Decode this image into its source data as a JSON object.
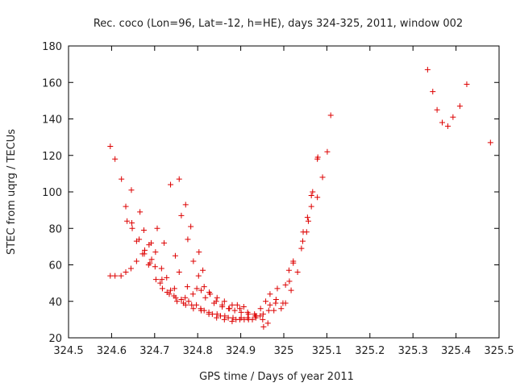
{
  "chart_data": {
    "type": "scatter",
    "title": "Rec. coco (Lon=96, Lat=-12, h=HE), days 324-325, 2011, window 002",
    "xlabel": "GPS time / Days of year 2011",
    "ylabel": "STEC from uqrg / TECUs",
    "xlim": [
      324.5,
      325.5
    ],
    "ylim": [
      20,
      180
    ],
    "xticks": [
      "324.5",
      "324.6",
      "324.7",
      "324.8",
      "324.9",
      "325",
      "325.1",
      "325.2",
      "325.3",
      "325.4",
      "325.5"
    ],
    "yticks": [
      "20",
      "40",
      "60",
      "80",
      "100",
      "120",
      "140",
      "160",
      "180"
    ],
    "grid": false,
    "marker": "plus",
    "color": "#dd0000",
    "points": [
      [
        324.597,
        125
      ],
      [
        324.608,
        118
      ],
      [
        324.623,
        107
      ],
      [
        324.633,
        92
      ],
      [
        324.646,
        101
      ],
      [
        324.648,
        80
      ],
      [
        324.658,
        73
      ],
      [
        324.666,
        89
      ],
      [
        324.675,
        79
      ],
      [
        324.687,
        71
      ],
      [
        324.706,
        80
      ],
      [
        324.722,
        72
      ],
      [
        324.737,
        104
      ],
      [
        324.757,
        107
      ],
      [
        324.762,
        87
      ],
      [
        324.772,
        93
      ],
      [
        324.784,
        81
      ],
      [
        324.803,
        67
      ],
      [
        324.812,
        57
      ],
      [
        324.597,
        54
      ],
      [
        324.608,
        54
      ],
      [
        324.622,
        54
      ],
      [
        324.633,
        56
      ],
      [
        324.645,
        58
      ],
      [
        324.658,
        62
      ],
      [
        324.672,
        66
      ],
      [
        324.686,
        60
      ],
      [
        324.701,
        59
      ],
      [
        324.716,
        58
      ],
      [
        324.728,
        53
      ],
      [
        324.746,
        47
      ],
      [
        324.762,
        41
      ],
      [
        324.776,
        48
      ],
      [
        324.798,
        47
      ],
      [
        324.818,
        42
      ],
      [
        324.838,
        39
      ],
      [
        324.857,
        37
      ],
      [
        324.874,
        36
      ],
      [
        324.892,
        38
      ],
      [
        324.907,
        37
      ],
      [
        324.636,
        84
      ],
      [
        324.647,
        83
      ],
      [
        324.664,
        74
      ],
      [
        324.677,
        68
      ],
      [
        324.693,
        63
      ],
      [
        324.703,
        52
      ],
      [
        324.718,
        47
      ],
      [
        324.734,
        44
      ],
      [
        324.749,
        42
      ],
      [
        324.767,
        39
      ],
      [
        324.786,
        38
      ],
      [
        324.807,
        36
      ],
      [
        324.826,
        34
      ],
      [
        324.845,
        33
      ],
      [
        324.863,
        32
      ],
      [
        324.882,
        31
      ],
      [
        324.901,
        31
      ],
      [
        324.918,
        30
      ],
      [
        324.935,
        31
      ],
      [
        324.952,
        33
      ],
      [
        324.676,
        66
      ],
      [
        324.689,
        61
      ],
      [
        324.702,
        67
      ],
      [
        324.713,
        50
      ],
      [
        324.729,
        45
      ],
      [
        324.745,
        43
      ],
      [
        324.762,
        41
      ],
      [
        324.779,
        40
      ],
      [
        324.797,
        38
      ],
      [
        324.815,
        35
      ],
      [
        324.834,
        33
      ],
      [
        324.853,
        32
      ],
      [
        324.871,
        31
      ],
      [
        324.889,
        30
      ],
      [
        324.908,
        30
      ],
      [
        324.927,
        30
      ],
      [
        324.945,
        32
      ],
      [
        324.965,
        35
      ],
      [
        324.982,
        41
      ],
      [
        324.692,
        72
      ],
      [
        324.717,
        52
      ],
      [
        324.737,
        46
      ],
      [
        324.752,
        40
      ],
      [
        324.771,
        42
      ],
      [
        324.789,
        44
      ],
      [
        324.808,
        46
      ],
      [
        324.827,
        45
      ],
      [
        324.845,
        42
      ],
      [
        324.862,
        40
      ],
      [
        324.88,
        38
      ],
      [
        324.898,
        36
      ],
      [
        324.916,
        34
      ],
      [
        324.934,
        32
      ],
      [
        324.951,
        30
      ],
      [
        324.963,
        28
      ],
      [
        324.977,
        35
      ],
      [
        324.998,
        39
      ],
      [
        324.748,
        65
      ],
      [
        324.777,
        74
      ],
      [
        324.79,
        62
      ],
      [
        324.802,
        54
      ],
      [
        324.815,
        48
      ],
      [
        324.829,
        44
      ],
      [
        324.843,
        40
      ],
      [
        324.857,
        38
      ],
      [
        324.872,
        36
      ],
      [
        324.886,
        35
      ],
      [
        324.901,
        34
      ],
      [
        324.918,
        33
      ],
      [
        324.936,
        32
      ],
      [
        324.953,
        26
      ],
      [
        324.968,
        38
      ],
      [
        324.981,
        39
      ],
      [
        324.994,
        36
      ],
      [
        324.757,
        56
      ],
      [
        324.772,
        38
      ],
      [
        324.79,
        36
      ],
      [
        324.808,
        35
      ],
      [
        324.826,
        33
      ],
      [
        324.844,
        31
      ],
      [
        324.862,
        30
      ],
      [
        324.88,
        29
      ],
      [
        324.898,
        30
      ],
      [
        324.916,
        31
      ],
      [
        324.932,
        33
      ],
      [
        324.946,
        36
      ],
      [
        324.958,
        40
      ],
      [
        324.968,
        44
      ],
      [
        324.985,
        47
      ],
      [
        325.004,
        49
      ],
      [
        325.013,
        51
      ],
      [
        325.012,
        57
      ],
      [
        325.022,
        62
      ],
      [
        325.022,
        61
      ],
      [
        325.041,
        69
      ],
      [
        325.045,
        78
      ],
      [
        325.053,
        78
      ],
      [
        325.057,
        84
      ],
      [
        325.064,
        92
      ],
      [
        325.067,
        100
      ],
      [
        325.078,
        97
      ],
      [
        325.078,
        118
      ],
      [
        325.09,
        108
      ],
      [
        325.101,
        122
      ],
      [
        325.109,
        142
      ],
      [
        325.004,
        39
      ],
      [
        325.017,
        46
      ],
      [
        325.032,
        56
      ],
      [
        325.044,
        73
      ],
      [
        325.055,
        86
      ],
      [
        325.064,
        98
      ],
      [
        325.079,
        119
      ],
      [
        325.334,
        167
      ],
      [
        325.346,
        155
      ],
      [
        325.356,
        145
      ],
      [
        325.368,
        138
      ],
      [
        325.381,
        136
      ],
      [
        325.393,
        141
      ],
      [
        325.409,
        147
      ],
      [
        325.425,
        159
      ],
      [
        325.48,
        127
      ]
    ]
  }
}
